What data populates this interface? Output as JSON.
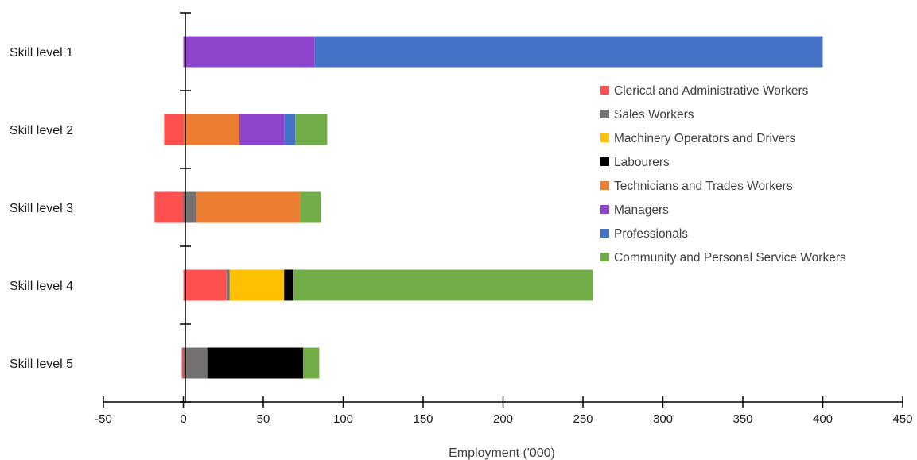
{
  "chart_data": {
    "type": "bar",
    "orientation": "horizontal",
    "stacked": true,
    "categories": [
      "Skill level 1",
      "Skill level 2",
      "Skill level 3",
      "Skill level 4",
      "Skill level 5"
    ],
    "series": [
      {
        "name": "Clerical and Administrative Workers",
        "color": "#ff5050",
        "values": [
          0,
          -12,
          -18,
          27,
          -1
        ]
      },
      {
        "name": "Sales Workers",
        "color": "#767171",
        "values": [
          0,
          0,
          8,
          2,
          15
        ]
      },
      {
        "name": "Machinery Operators and Drivers",
        "color": "#ffc000",
        "values": [
          0,
          0,
          0,
          34,
          0
        ]
      },
      {
        "name": "Labourers",
        "color": "#000000",
        "values": [
          0,
          0,
          0,
          6,
          60
        ]
      },
      {
        "name": "Technicians and Trades Workers",
        "color": "#ed7d31",
        "values": [
          0,
          35,
          65,
          0,
          0
        ]
      },
      {
        "name": "Managers",
        "color": "#8e44cc",
        "values": [
          82,
          28,
          0,
          0,
          0
        ]
      },
      {
        "name": "Professionals",
        "color": "#4472c4",
        "values": [
          318,
          7,
          0,
          0,
          0
        ]
      },
      {
        "name": "Community and Personal Service Workers",
        "color": "#70ad47",
        "values": [
          0,
          20,
          13,
          187,
          10
        ]
      }
    ],
    "xlabel": "Employment ('000)",
    "ylabel": "",
    "xlim": [
      -50,
      450
    ],
    "xticks": [
      -50,
      0,
      50,
      100,
      150,
      200,
      250,
      300,
      350,
      400,
      450
    ],
    "grid": false,
    "legend_position": "right"
  }
}
